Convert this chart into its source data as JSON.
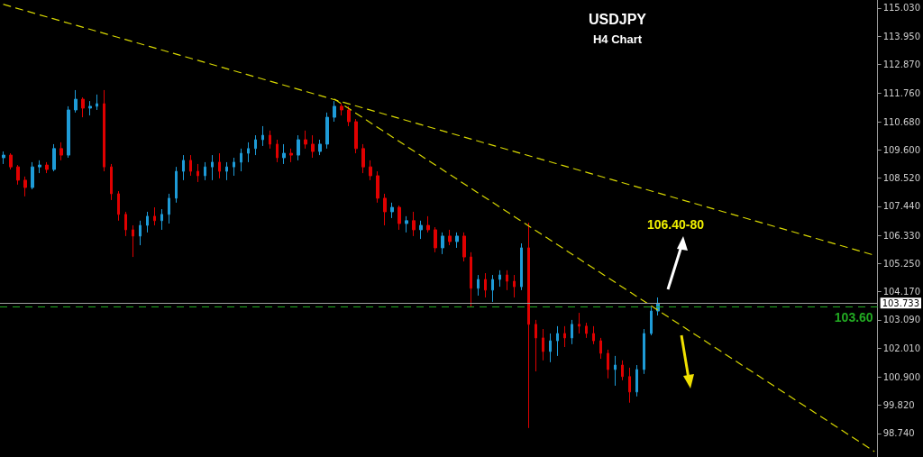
{
  "chart_data": {
    "type": "candlestick",
    "title": "USDJPY",
    "subtitle": "H4 Chart",
    "categories": [
      null,
      null,
      null,
      null,
      null,
      null,
      null,
      null,
      null,
      null,
      null,
      null,
      null,
      null,
      null,
      null,
      null,
      null,
      null,
      null,
      null,
      null,
      null,
      null,
      null,
      null,
      null,
      null,
      null,
      null,
      null,
      null,
      null,
      null,
      null,
      null,
      null,
      null,
      null,
      null,
      null,
      null,
      null,
      null,
      null,
      null,
      null,
      null,
      null,
      null,
      null,
      null,
      null,
      null,
      null,
      null,
      null,
      null,
      null,
      null,
      null,
      null,
      null,
      null,
      null,
      null,
      null,
      null,
      null,
      null,
      null,
      null,
      null,
      null,
      null,
      null,
      null,
      null,
      null,
      null,
      null,
      null,
      null,
      null,
      null,
      null,
      null,
      null,
      null,
      null,
      null,
      null,
      null,
      null,
      null,
      null,
      null,
      null,
      null,
      null,
      null,
      null,
      null,
      null,
      null,
      null,
      null,
      null,
      null,
      null,
      null,
      null,
      null,
      null,
      null,
      null,
      null,
      null,
      null,
      null,
      null,
      null
    ],
    "ohlc": [
      [
        109.3,
        109.54,
        109.06,
        109.4
      ],
      [
        109.4,
        109.47,
        108.85,
        108.95
      ],
      [
        108.95,
        109.02,
        108.27,
        108.44
      ],
      [
        108.44,
        108.58,
        107.82,
        108.16
      ],
      [
        108.16,
        109.13,
        108.09,
        108.95
      ],
      [
        108.95,
        109.2,
        108.71,
        109.02
      ],
      [
        109.02,
        109.13,
        108.71,
        108.85
      ],
      [
        108.85,
        109.82,
        108.78,
        109.65
      ],
      [
        109.65,
        109.89,
        109.2,
        109.4
      ],
      [
        109.4,
        111.27,
        109.3,
        111.13
      ],
      [
        111.13,
        111.89,
        111.03,
        111.54
      ],
      [
        111.54,
        111.61,
        110.85,
        111.2
      ],
      [
        111.2,
        111.47,
        110.92,
        111.27
      ],
      [
        111.27,
        111.72,
        111.13,
        111.37
      ],
      [
        111.37,
        111.89,
        108.78,
        108.95
      ],
      [
        108.95,
        109.06,
        107.68,
        107.92
      ],
      [
        107.92,
        108.02,
        106.89,
        107.13
      ],
      [
        107.13,
        107.23,
        106.3,
        106.54
      ],
      [
        106.54,
        106.71,
        105.5,
        106.3
      ],
      [
        106.3,
        106.89,
        105.95,
        106.71
      ],
      [
        106.71,
        107.23,
        106.44,
        107.06
      ],
      [
        107.06,
        107.4,
        106.71,
        106.89
      ],
      [
        106.89,
        107.33,
        106.54,
        107.13
      ],
      [
        107.13,
        107.92,
        106.78,
        107.75
      ],
      [
        107.75,
        108.95,
        107.58,
        108.78
      ],
      [
        108.78,
        109.4,
        108.44,
        109.2
      ],
      [
        109.2,
        109.4,
        108.61,
        108.78
      ],
      [
        108.78,
        109.06,
        108.37,
        108.61
      ],
      [
        108.61,
        109.13,
        108.44,
        108.95
      ],
      [
        108.95,
        109.4,
        108.44,
        109.13
      ],
      [
        109.13,
        109.47,
        108.51,
        108.78
      ],
      [
        108.78,
        109.13,
        108.44,
        108.95
      ],
      [
        108.95,
        109.3,
        108.61,
        109.13
      ],
      [
        109.13,
        109.65,
        108.78,
        109.47
      ],
      [
        109.47,
        109.89,
        109.13,
        109.65
      ],
      [
        109.65,
        110.16,
        109.4,
        109.99
      ],
      [
        109.99,
        110.51,
        109.75,
        110.16
      ],
      [
        110.16,
        110.34,
        109.65,
        109.82
      ],
      [
        109.82,
        109.99,
        109.13,
        109.3
      ],
      [
        109.3,
        109.82,
        109.06,
        109.47
      ],
      [
        109.47,
        109.65,
        109.13,
        109.4
      ],
      [
        109.4,
        110.16,
        109.2,
        109.99
      ],
      [
        109.99,
        110.34,
        109.65,
        109.82
      ],
      [
        109.82,
        110.16,
        109.3,
        109.54
      ],
      [
        109.54,
        109.99,
        109.4,
        109.82
      ],
      [
        109.82,
        111.03,
        109.65,
        110.85
      ],
      [
        110.85,
        111.47,
        110.68,
        111.27
      ],
      [
        111.27,
        111.37,
        110.92,
        111.13
      ],
      [
        111.13,
        111.27,
        110.51,
        110.68
      ],
      [
        110.68,
        110.78,
        109.47,
        109.65
      ],
      [
        109.65,
        109.82,
        108.71,
        108.95
      ],
      [
        108.95,
        109.2,
        108.44,
        108.61
      ],
      [
        108.61,
        108.78,
        107.58,
        107.75
      ],
      [
        107.75,
        107.92,
        106.71,
        107.23
      ],
      [
        107.23,
        107.58,
        106.99,
        107.4
      ],
      [
        107.4,
        107.47,
        106.54,
        106.78
      ],
      [
        106.78,
        107.06,
        106.44,
        106.89
      ],
      [
        106.89,
        107.23,
        106.3,
        106.54
      ],
      [
        106.54,
        106.89,
        106.19,
        106.71
      ],
      [
        106.71,
        107.06,
        106.44,
        106.54
      ],
      [
        106.54,
        106.64,
        105.68,
        105.85
      ],
      [
        105.85,
        106.44,
        105.61,
        106.3
      ],
      [
        106.3,
        106.54,
        105.95,
        106.09
      ],
      [
        106.09,
        106.44,
        105.85,
        106.3
      ],
      [
        106.3,
        106.44,
        105.33,
        105.5
      ],
      [
        105.5,
        105.68,
        103.6,
        104.3
      ],
      [
        104.3,
        104.81,
        104.02,
        104.64
      ],
      [
        104.64,
        104.88,
        103.95,
        104.23
      ],
      [
        104.23,
        104.81,
        103.78,
        104.64
      ],
      [
        104.64,
        104.99,
        104.36,
        104.81
      ],
      [
        104.81,
        104.99,
        104.23,
        104.57
      ],
      [
        104.57,
        104.81,
        103.95,
        104.36
      ],
      [
        104.36,
        106.02,
        104.23,
        105.85
      ],
      [
        105.85,
        106.81,
        98.95,
        102.92
      ],
      [
        102.92,
        103.09,
        101.12,
        102.4
      ],
      [
        102.4,
        102.74,
        101.54,
        101.88
      ],
      [
        101.88,
        102.57,
        101.47,
        102.29
      ],
      [
        102.29,
        102.85,
        101.71,
        102.57
      ],
      [
        102.57,
        102.85,
        102.05,
        102.4
      ],
      [
        102.4,
        103.09,
        102.16,
        102.92
      ],
      [
        102.92,
        103.36,
        102.57,
        102.85
      ],
      [
        102.85,
        102.98,
        102.4,
        102.57
      ],
      [
        102.57,
        102.85,
        102.16,
        102.29
      ],
      [
        102.29,
        102.4,
        101.6,
        101.81
      ],
      [
        101.81,
        101.95,
        100.85,
        101.19
      ],
      [
        101.19,
        101.71,
        100.57,
        101.36
      ],
      [
        101.36,
        101.54,
        100.78,
        100.92
      ],
      [
        100.92,
        101.26,
        99.92,
        100.33
      ],
      [
        100.33,
        101.36,
        100.16,
        101.19
      ],
      [
        101.19,
        102.74,
        101.02,
        102.57
      ],
      [
        102.57,
        103.6,
        102.5,
        103.43
      ],
      [
        103.43,
        103.95,
        103.26,
        103.73
      ],
      null,
      null,
      null,
      null,
      null,
      null,
      null,
      null,
      null,
      null,
      null,
      null,
      null,
      null,
      null,
      null,
      null,
      null,
      null,
      null,
      null,
      null,
      null,
      null,
      null,
      null,
      null,
      null,
      null,
      null
    ],
    "colors": [
      "#1e9bd7",
      "#e00000",
      "#e00000",
      "#e00000",
      "#1e9bd7",
      "#1e9bd7",
      "#e00000",
      "#1e9bd7",
      "#e00000",
      "#1e9bd7",
      "#1e9bd7",
      "#e00000",
      "#1e9bd7",
      "#1e9bd7",
      "#e00000",
      "#e00000",
      "#e00000",
      "#e00000",
      "#e00000",
      "#1e9bd7",
      "#1e9bd7",
      "#e00000",
      "#1e9bd7",
      "#1e9bd7",
      "#1e9bd7",
      "#1e9bd7",
      "#e00000",
      "#e00000",
      "#1e9bd7",
      "#1e9bd7",
      "#e00000",
      "#1e9bd7",
      "#1e9bd7",
      "#1e9bd7",
      "#1e9bd7",
      "#1e9bd7",
      "#1e9bd7",
      "#e00000",
      "#e00000",
      "#1e9bd7",
      "#e00000",
      "#1e9bd7",
      "#e00000",
      "#e00000",
      "#1e9bd7",
      "#1e9bd7",
      "#1e9bd7",
      "#e00000",
      "#e00000",
      "#e00000",
      "#e00000",
      "#e00000",
      "#e00000",
      "#e00000",
      "#1e9bd7",
      "#e00000",
      "#1e9bd7",
      "#e00000",
      "#1e9bd7",
      "#e00000",
      "#e00000",
      "#1e9bd7",
      "#e00000",
      "#1e9bd7",
      "#e00000",
      "#e00000",
      "#1e9bd7",
      "#e00000",
      "#1e9bd7",
      "#1e9bd7",
      "#e00000",
      "#e00000",
      "#1e9bd7",
      "#e00000",
      "#e00000",
      "#e00000",
      "#1e9bd7",
      "#1e9bd7",
      "#e00000",
      "#1e9bd7",
      "#e00000",
      "#e00000",
      "#e00000",
      "#e00000",
      "#e00000",
      "#1e9bd7",
      "#e00000",
      "#e00000",
      "#1e9bd7",
      "#1e9bd7",
      "#1e9bd7",
      "#1e9bd7",
      null,
      null,
      null,
      null,
      null,
      null,
      null,
      null,
      null,
      null,
      null,
      null,
      null,
      null,
      null,
      null,
      null,
      null,
      null,
      null,
      null,
      null,
      null,
      null,
      null,
      null,
      null,
      null,
      null,
      null
    ],
    "series": [
      {
        "type": "line",
        "color": "#d8d800",
        "line_style": "dashed",
        "values": [
          115.17,
          null,
          null,
          null,
          null,
          null,
          null,
          null,
          null,
          null,
          null,
          null,
          null,
          null,
          null,
          null,
          null,
          null,
          null,
          null,
          null,
          null,
          null,
          null,
          null,
          null,
          null,
          null,
          null,
          null,
          null,
          null,
          null,
          null,
          null,
          null,
          null,
          null,
          null,
          null,
          null,
          null,
          null,
          null,
          null,
          null,
          null,
          null,
          null,
          null,
          null,
          null,
          null,
          null,
          null,
          null,
          null,
          null,
          null,
          null,
          null,
          null,
          null,
          null,
          null,
          null,
          null,
          null,
          null,
          null,
          null,
          null,
          null,
          null,
          null,
          null,
          null,
          null,
          null,
          null,
          null,
          null,
          null,
          null,
          null,
          null,
          null,
          null,
          null,
          null,
          null,
          null,
          null,
          null,
          null,
          null,
          null,
          null,
          null,
          null,
          null,
          null,
          null,
          null,
          null,
          null,
          null,
          null,
          null,
          null,
          null,
          null,
          null,
          null,
          null,
          null,
          null,
          null,
          null,
          null,
          null,
          105.57
        ]
      },
      {
        "type": "line",
        "color": "#d8d800",
        "line_style": "dashed",
        "values": [
          null,
          null,
          null,
          null,
          null,
          null,
          null,
          null,
          null,
          null,
          null,
          null,
          null,
          null,
          null,
          null,
          null,
          null,
          null,
          null,
          null,
          null,
          null,
          null,
          null,
          null,
          null,
          null,
          null,
          null,
          null,
          null,
          null,
          null,
          null,
          null,
          null,
          null,
          null,
          null,
          null,
          null,
          null,
          null,
          null,
          null,
          111.54,
          null,
          null,
          null,
          null,
          null,
          null,
          null,
          null,
          null,
          null,
          null,
          null,
          null,
          null,
          null,
          null,
          null,
          null,
          null,
          null,
          null,
          null,
          null,
          null,
          null,
          null,
          null,
          null,
          null,
          null,
          null,
          null,
          null,
          null,
          null,
          null,
          null,
          null,
          null,
          null,
          null,
          null,
          null,
          null,
          null,
          null,
          null,
          null,
          null,
          null,
          null,
          null,
          null,
          null,
          null,
          null,
          null,
          null,
          null,
          null,
          null,
          null,
          null,
          null,
          null,
          null,
          null,
          null,
          null,
          null,
          null,
          null,
          null,
          null,
          98.06
        ]
      }
    ],
    "ref_lines": [
      {
        "axis": "y",
        "value": 103.733,
        "label": "103.733",
        "color": "#a0a0a0"
      },
      {
        "axis": "y",
        "value": 103.6,
        "label": "103.60",
        "color": "#22aa22",
        "line_style": "dashed"
      }
    ],
    "annotations": [
      "106.40-80"
    ],
    "ylim": [
      97.84,
      115.34
    ],
    "yticks": [
      {
        "value": 115.03,
        "label": "115.030"
      },
      {
        "value": 113.95,
        "label": "113.950"
      },
      {
        "value": 112.87,
        "label": "112.870"
      },
      {
        "value": 111.76,
        "label": "111.760"
      },
      {
        "value": 110.68,
        "label": "110.680"
      },
      {
        "value": 109.6,
        "label": "109.600"
      },
      {
        "value": 108.52,
        "label": "108.520"
      },
      {
        "value": 107.44,
        "label": "107.440"
      },
      {
        "value": 106.33,
        "label": "106.330"
      },
      {
        "value": 105.25,
        "label": "105.250"
      },
      {
        "value": 104.17,
        "label": "104.170"
      },
      {
        "value": 103.09,
        "label": "103.090"
      },
      {
        "value": 102.01,
        "label": "102.010"
      },
      {
        "value": 100.9,
        "label": "100.900"
      },
      {
        "value": 99.82,
        "label": "99.820"
      },
      {
        "value": 98.74,
        "label": "98.740"
      }
    ],
    "tick_labels": "y",
    "grid": false
  }
}
